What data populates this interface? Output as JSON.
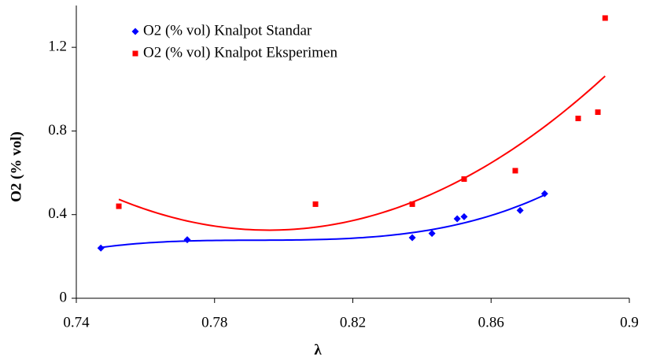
{
  "chart_data": {
    "type": "scatter",
    "xlabel": "λ",
    "ylabel": "O2 (% vol)",
    "xlim": [
      0.74,
      0.9
    ],
    "xticks": [
      0.74,
      0.78,
      0.82,
      0.86,
      0.9
    ],
    "ylim": [
      0,
      1.4
    ],
    "yticks": [
      0,
      0.4,
      0.8,
      1.2
    ],
    "legend": "upper left",
    "series": [
      {
        "name": "O2 (% vol) Knalpot Standar",
        "color": "#0000ff",
        "marker": "diamond",
        "trendline": {
          "order": 3
        },
        "x": [
          0.7471,
          0.7721,
          0.8372,
          0.8429,
          0.8502,
          0.8522,
          0.8684,
          0.8755
        ],
        "values": [
          0.24,
          0.28,
          0.29,
          0.31,
          0.38,
          0.39,
          0.42,
          0.5
        ]
      },
      {
        "name": "O2 (% vol) Knalpot Eksperimen",
        "color": "#ff0000",
        "marker": "square",
        "trendline": {
          "order": 2
        },
        "x": [
          0.7523,
          0.8092,
          0.8372,
          0.8522,
          0.867,
          0.8852,
          0.8909,
          0.893
        ],
        "values": [
          0.44,
          0.45,
          0.45,
          0.57,
          0.61,
          0.86,
          0.89,
          1.34
        ]
      }
    ]
  }
}
